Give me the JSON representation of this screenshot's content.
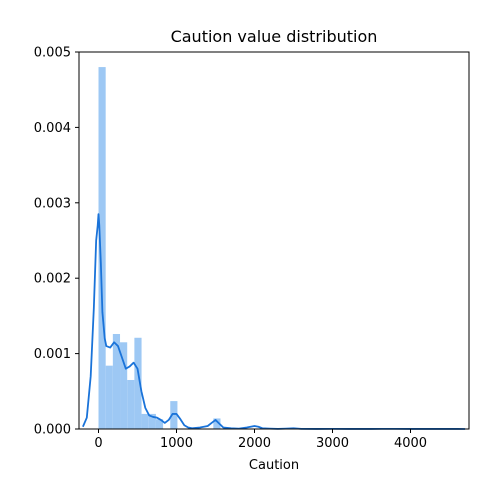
{
  "chart_data": {
    "type": "bar",
    "title": "Caution value distribution",
    "xlabel": "Caution",
    "ylabel": "",
    "xlim": [
      -250,
      4750
    ],
    "ylim": [
      0,
      0.005
    ],
    "grid": false,
    "x_ticks": [
      {
        "value": 0,
        "label": "0"
      },
      {
        "value": 1000,
        "label": "1000"
      },
      {
        "value": 2000,
        "label": "2000"
      },
      {
        "value": 3000,
        "label": "3000"
      },
      {
        "value": 4000,
        "label": "4000"
      }
    ],
    "y_ticks": [
      {
        "value": 0,
        "label": "0.000"
      },
      {
        "value": 0.001,
        "label": "0.001"
      },
      {
        "value": 0.002,
        "label": "0.002"
      },
      {
        "value": 0.003,
        "label": "0.003"
      },
      {
        "value": 0.004,
        "label": "0.004"
      },
      {
        "value": 0.005,
        "label": "0.005"
      }
    ],
    "histogram": {
      "color": "#9dc8f4",
      "bin_width": 92,
      "bins": [
        {
          "x0": 0,
          "height": 0.0048
        },
        {
          "x0": 92,
          "height": 0.00084
        },
        {
          "x0": 184,
          "height": 0.00126
        },
        {
          "x0": 276,
          "height": 0.00115
        },
        {
          "x0": 368,
          "height": 0.00065
        },
        {
          "x0": 460,
          "height": 0.00121
        },
        {
          "x0": 552,
          "height": 0.0002
        },
        {
          "x0": 644,
          "height": 0.0002
        },
        {
          "x0": 736,
          "height": 0.00013
        },
        {
          "x0": 828,
          "height": 0
        },
        {
          "x0": 920,
          "height": 0.00037
        },
        {
          "x0": 1012,
          "height": 0
        },
        {
          "x0": 1104,
          "height": 0
        },
        {
          "x0": 1196,
          "height": 0
        },
        {
          "x0": 1288,
          "height": 0
        },
        {
          "x0": 1380,
          "height": 0
        },
        {
          "x0": 1472,
          "height": 0.00014
        }
      ]
    },
    "kde": {
      "color": "#1a73d9",
      "x": [
        -200,
        -150,
        -100,
        -60,
        -30,
        -10,
        0,
        10,
        30,
        50,
        80,
        100,
        150,
        200,
        250,
        300,
        350,
        400,
        450,
        500,
        550,
        600,
        650,
        700,
        750,
        800,
        850,
        900,
        950,
        1000,
        1050,
        1100,
        1150,
        1200,
        1300,
        1400,
        1450,
        1500,
        1550,
        1600,
        1700,
        1800,
        1900,
        2000,
        2050,
        2100,
        2200,
        2300,
        2400,
        2500,
        2600,
        2800,
        3000,
        3200,
        3500,
        3800,
        4000,
        4300,
        4600,
        4700
      ],
      "y": [
        3e-05,
        0.00015,
        0.0007,
        0.0016,
        0.0025,
        0.0027,
        0.00285,
        0.0027,
        0.0022,
        0.00155,
        0.0012,
        0.0011,
        0.00108,
        0.00115,
        0.0011,
        0.00095,
        0.0008,
        0.00083,
        0.00088,
        0.0008,
        0.0005,
        0.00028,
        0.00018,
        0.00016,
        0.00015,
        0.00012,
        8e-05,
        0.00012,
        0.0002,
        0.0002,
        0.00013,
        5e-05,
        2e-05,
        1e-05,
        2e-05,
        4e-05,
        8e-05,
        0.00012,
        7e-05,
        2e-05,
        1e-05,
        5e-06,
        2e-05,
        4e-05,
        3e-05,
        1e-05,
        5e-06,
        2e-06,
        5e-06,
        1e-05,
        2e-06,
        1e-06,
        2e-06,
        1e-06,
        1e-06,
        2e-06,
        1e-06,
        1e-06,
        1e-06,
        0.0
      ]
    }
  }
}
